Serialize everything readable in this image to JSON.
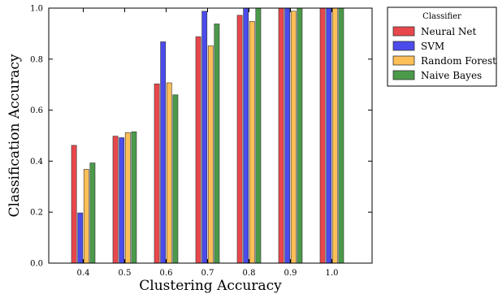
{
  "chart_data": {
    "type": "bar",
    "xlabel": "Clustering Accuracy",
    "ylabel": "Classification Accuracy",
    "categories": [
      "0.4",
      "0.5",
      "0.6",
      "0.7",
      "0.8",
      "0.9",
      "1.0"
    ],
    "ylim": [
      0.0,
      1.0
    ],
    "yticks": [
      "0.0",
      "0.2",
      "0.4",
      "0.6",
      "0.8",
      "1.0"
    ],
    "grid": false,
    "legend": {
      "title": "Classifier",
      "placement": "outside-top-right"
    },
    "series": [
      {
        "name": "Neural Net",
        "color": "#e8474c",
        "values": [
          0.462,
          0.498,
          0.703,
          0.888,
          0.972,
          1.0,
          1.0
        ]
      },
      {
        "name": "SVM",
        "color": "#4b4bec",
        "values": [
          0.197,
          0.492,
          0.868,
          0.988,
          1.0,
          1.0,
          1.0
        ]
      },
      {
        "name": "Random Forest",
        "color": "#ffbf57",
        "values": [
          0.368,
          0.512,
          0.707,
          0.852,
          0.948,
          0.988,
          1.0
        ]
      },
      {
        "name": "Naive Bayes",
        "color": "#4a9a4a",
        "values": [
          0.393,
          0.515,
          0.66,
          0.938,
          1.0,
          1.0,
          1.0
        ]
      }
    ]
  }
}
